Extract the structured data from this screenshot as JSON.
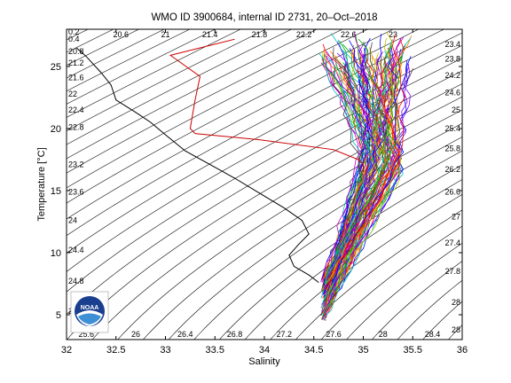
{
  "chart_data": {
    "type": "line",
    "title": "WMO ID 3900684, internal ID 2731, 20–Oct–2018",
    "xlabel": "Salinity",
    "ylabel": "Temperature [°C]",
    "xlim": [
      32,
      36
    ],
    "ylim": [
      3,
      28
    ],
    "xticks": [
      32,
      32.5,
      33,
      33.5,
      34,
      34.5,
      35,
      35.5,
      36
    ],
    "xtick_labels": [
      "32",
      "32.5",
      "33",
      "33.5",
      "34",
      "34.5",
      "35",
      "35.5",
      "36"
    ],
    "yticks": [
      5,
      10,
      15,
      20,
      25
    ],
    "ytick_labels": [
      "5",
      "10",
      "15",
      "20",
      "25"
    ],
    "grid": false,
    "background_isopycnals": {
      "description_levels": [
        20.0,
        20.4,
        20.8,
        21.2,
        21.6,
        22,
        22.4,
        22.8,
        23.2,
        23.6,
        24,
        24.4,
        24.8,
        25.2,
        25.6,
        26,
        26.4,
        26.8,
        27.2,
        27.6,
        28
      ],
      "labels_left": [
        {
          "text": "0.2",
          "t": 27.8
        },
        {
          "text": "0.4",
          "t": 27.2
        },
        {
          "text": "20.8",
          "t": 26.2
        },
        {
          "text": "21.2",
          "t": 25.3
        },
        {
          "text": "21.6",
          "t": 24.1
        },
        {
          "text": "22",
          "t": 22.8
        },
        {
          "text": "22.4",
          "t": 21.5
        },
        {
          "text": "22.8",
          "t": 20.1
        },
        {
          "text": "23.2",
          "t": 17.1
        },
        {
          "text": "23.6",
          "t": 14.9
        },
        {
          "text": "24",
          "t": 12.6
        },
        {
          "text": "24.4",
          "t": 10.2
        },
        {
          "text": "24.8",
          "t": 7.7
        },
        {
          "text": "25.2",
          "t": 5.3
        }
      ],
      "labels_bottom": [
        {
          "text": "25.6",
          "s": 32.2
        },
        {
          "text": "26",
          "s": 32.7
        },
        {
          "text": "26.4",
          "s": 33.2
        },
        {
          "text": "26.8",
          "s": 33.7
        },
        {
          "text": "27.2",
          "s": 34.2
        },
        {
          "text": "27.6",
          "s": 34.7
        },
        {
          "text": "28",
          "s": 35.2
        },
        {
          "text": "28.4",
          "s": 35.7
        }
      ],
      "labels_top": [
        {
          "text": "20.6",
          "s": 32.55
        },
        {
          "text": "21",
          "s": 33.0
        },
        {
          "text": "21.4",
          "s": 33.45
        },
        {
          "text": "21.8",
          "s": 33.95
        },
        {
          "text": "22.2",
          "s": 34.4
        },
        {
          "text": "22.6",
          "s": 34.85
        },
        {
          "text": "23",
          "s": 35.3
        }
      ],
      "labels_right": [
        {
          "text": "23.4",
          "t": 26.8
        },
        {
          "text": "23.8",
          "t": 25.6
        },
        {
          "text": "24.2",
          "t": 24.3
        },
        {
          "text": "24.6",
          "t": 22.9
        },
        {
          "text": "25",
          "t": 21.5
        },
        {
          "text": "25.4",
          "t": 20.0
        },
        {
          "text": "25.8",
          "t": 18.4
        },
        {
          "text": "26.2",
          "t": 16.7
        },
        {
          "text": "26.6",
          "t": 14.9
        },
        {
          "text": "27",
          "t": 12.9
        },
        {
          "text": "27.4",
          "t": 10.8
        },
        {
          "text": "27.8",
          "t": 8.5
        },
        {
          "text": "28",
          "t": 6.0
        },
        {
          "text": "28",
          "t": 3.8
        }
      ]
    },
    "series": [
      {
        "role": "current profile",
        "color": "#cc0000",
        "x": [
          33.7,
          33.05,
          33.35,
          33.3,
          33.25,
          33.3,
          33.95,
          34.7,
          34.95,
          35.0,
          35.0
        ],
        "y": [
          27.2,
          25.9,
          24.2,
          22.3,
          20.0,
          19.6,
          19.1,
          18.3,
          17.5,
          17.1,
          16.5
        ]
      },
      {
        "role": "climatology mean",
        "color": "#000000",
        "x": [
          32.1,
          32.2,
          32.35,
          32.45,
          32.5,
          32.7,
          32.85,
          33.0,
          33.2,
          33.45,
          33.7,
          33.95,
          34.2,
          34.38,
          34.45,
          34.35,
          34.25,
          34.3,
          34.45,
          34.55
        ],
        "y": [
          26.5,
          25.8,
          24.5,
          23.5,
          22.3,
          21.3,
          20.5,
          19.5,
          18.2,
          17.1,
          16.0,
          14.8,
          13.6,
          12.6,
          11.5,
          10.7,
          9.8,
          8.9,
          8.2,
          7.6
        ]
      }
    ],
    "historical_profiles_colors": [
      "#0000ff",
      "#00aa00",
      "#ff0000",
      "#00bfbf",
      "#bf00bf",
      "#bfbf00",
      "#404040",
      "#ff7f00",
      "#7f00ff"
    ]
  },
  "logo": {
    "name": "noaa-logo",
    "text": "NOAA"
  }
}
